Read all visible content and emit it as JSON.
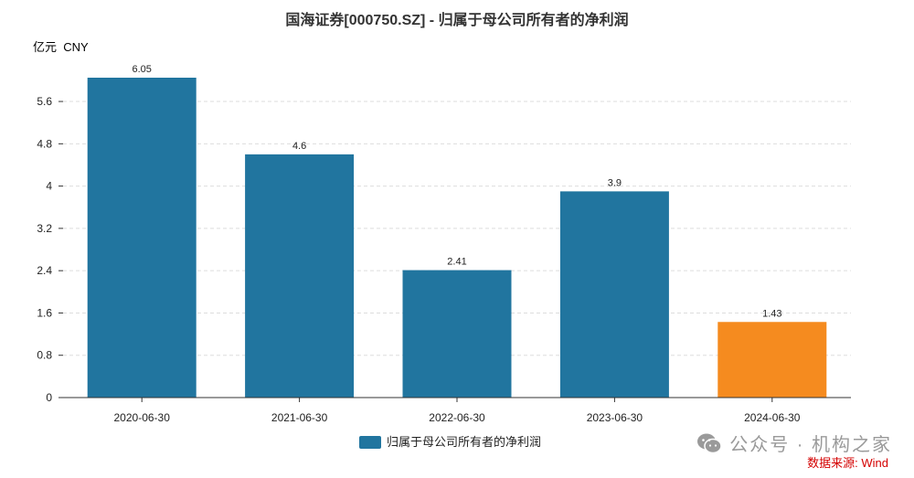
{
  "chart_data": {
    "type": "bar",
    "title": "国海证券[000750.SZ] - 归属于母公司所有者的净利润",
    "unit_label": "亿元  CNY",
    "categories": [
      "2020-06-30",
      "2021-06-30",
      "2022-06-30",
      "2023-06-30",
      "2024-06-30"
    ],
    "series": [
      {
        "name": "归属于母公司所有者的净利润",
        "values": [
          6.05,
          4.6,
          2.41,
          3.9,
          1.43
        ]
      }
    ],
    "data_labels": [
      "6.05",
      "4.6",
      "2.41",
      "3.9",
      "1.43"
    ],
    "yticks": [
      0,
      0.8,
      1.6,
      2.4,
      3.2,
      4,
      4.8,
      5.6
    ],
    "ytick_labels": [
      "0",
      "0.8",
      "1.6",
      "2.4",
      "3.2",
      "4",
      "4.8",
      "5.6"
    ],
    "ylim": [
      0,
      6.05
    ],
    "bar_colors": [
      "#21759f",
      "#21759f",
      "#21759f",
      "#21759f",
      "#f58b1f"
    ],
    "legend_color": "#21759f",
    "grid": true,
    "legend_position": "bottom-center"
  },
  "watermark": {
    "text": "公众号 · 机构之家",
    "icon": "wechat-icon"
  },
  "source": {
    "text": "数据来源: Wind",
    "color": "#d40000"
  }
}
